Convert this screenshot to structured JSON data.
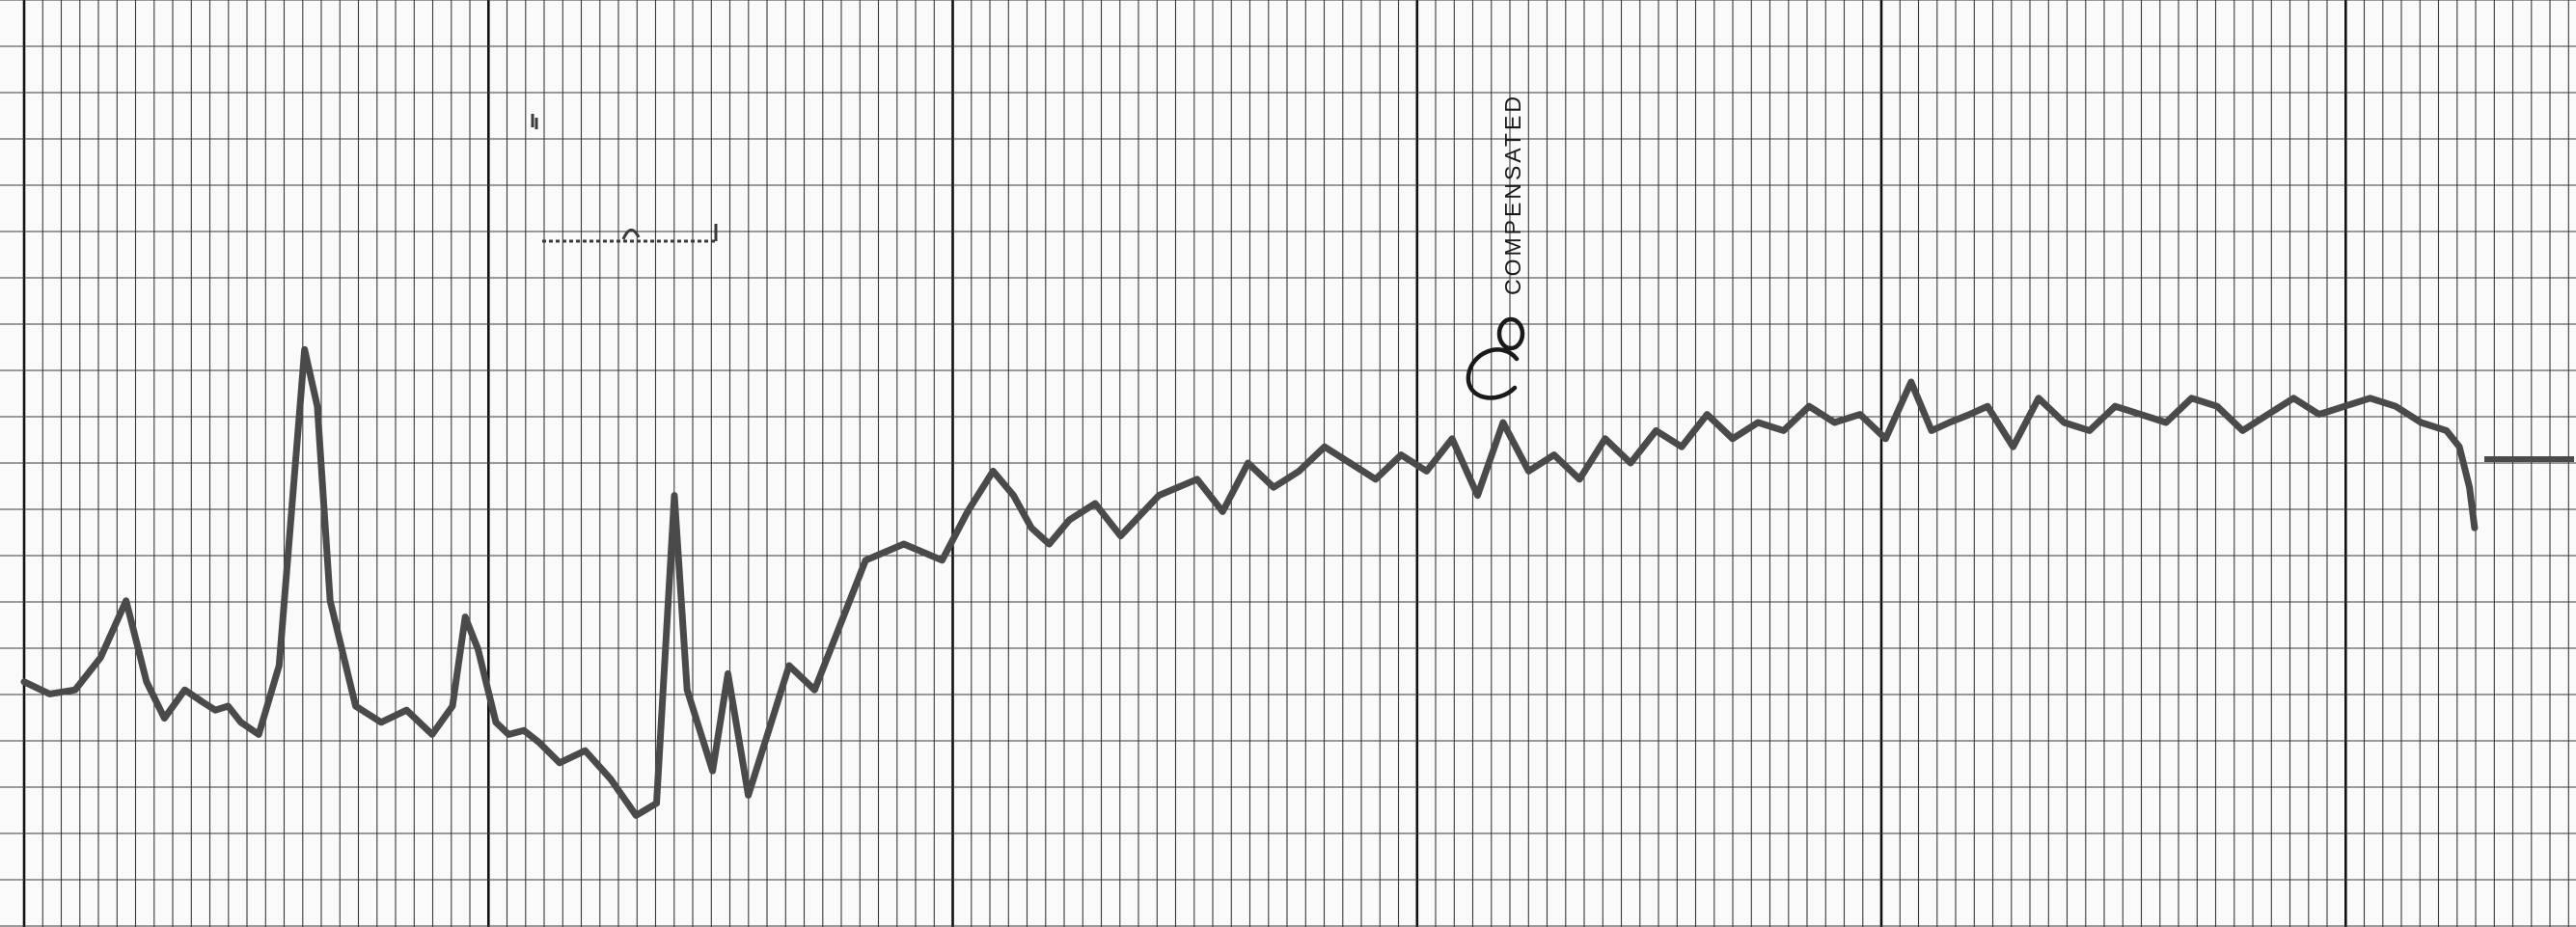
{
  "colors": {
    "paper": "#fafafa",
    "minor_grid": "#3a3a3a",
    "major_grid": "#111111",
    "trace": "#4a4a4a",
    "ink": "#1a1a1a"
  },
  "annotations": {
    "label": "COMPENSATED",
    "handwritten_mark": "Co"
  },
  "chart_data": {
    "type": "line",
    "title": "",
    "xlabel": "",
    "ylabel": "",
    "xlim": [
      0,
      100
    ],
    "ylim": [
      0,
      100
    ],
    "grid": true,
    "legend": "none",
    "series": [
      {
        "x": [
          0,
          1,
          2,
          3,
          4,
          4.8,
          5.5,
          6.3,
          7,
          7.5,
          8,
          8.5,
          9.2,
          10,
          11,
          11.5,
          12,
          13,
          14,
          15,
          16,
          16.8,
          17.3,
          17.8,
          18.5,
          19,
          19.6,
          20.2,
          21,
          22,
          23,
          24,
          24.8,
          25.5,
          26,
          27,
          27.6,
          28.4,
          29.2,
          30,
          31,
          32,
          33,
          34.5,
          36,
          37,
          38,
          38.8,
          39.5,
          40.2,
          41,
          42,
          43,
          44.5,
          46,
          47,
          48,
          49,
          50,
          51,
          52,
          53,
          54,
          55,
          56,
          57,
          58,
          59,
          60,
          61,
          62,
          63,
          64,
          65,
          66,
          67,
          68,
          69,
          70,
          71,
          72,
          73,
          74,
          74.8,
          75.5,
          76.3,
          77,
          78,
          79,
          80,
          81,
          82,
          83,
          84,
          85,
          86,
          87,
          88,
          89,
          90,
          91,
          92,
          93,
          94,
          95,
          95.5,
          95.9,
          96.1
        ],
        "y": [
          23,
          21.5,
          22,
          26,
          33,
          23,
          18.5,
          22,
          20.5,
          19.5,
          20,
          18,
          16.5,
          25,
          64,
          57,
          33,
          20,
          18,
          19.5,
          16.5,
          20,
          31,
          27,
          18,
          16.5,
          17,
          15.5,
          13,
          14.5,
          11,
          6.5,
          8,
          46,
          22,
          12,
          24,
          9,
          17,
          25,
          22,
          30,
          38,
          40,
          38,
          44,
          49,
          46,
          42,
          40,
          43,
          45,
          41,
          46,
          48,
          44,
          50,
          47,
          49,
          52,
          50,
          48,
          51,
          49,
          53,
          46,
          55,
          49,
          51,
          48,
          53,
          50,
          54,
          52,
          56,
          53,
          55,
          54,
          57,
          55,
          56,
          53,
          60,
          54,
          55,
          56,
          57,
          52,
          58,
          55,
          54,
          57,
          56,
          55,
          58,
          57,
          54,
          56,
          58,
          56,
          57,
          58,
          57,
          55,
          54,
          52,
          47,
          42
        ]
      }
    ]
  }
}
